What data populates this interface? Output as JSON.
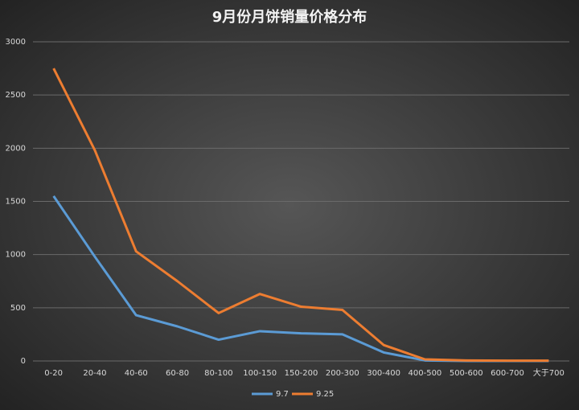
{
  "chart_data": {
    "type": "line",
    "title": "9月份月饼销量价格分布",
    "categories": [
      "0-20",
      "20-40",
      "40-60",
      "60-80",
      "80-100",
      "100-150",
      "150-200",
      "200-300",
      "300-400",
      "400-500",
      "500-600",
      "600-700",
      "大于700"
    ],
    "series": [
      {
        "name": "9.7",
        "color": "#5b9bd5",
        "values": [
          1550,
          980,
          430,
          325,
          200,
          280,
          260,
          250,
          80,
          5,
          0,
          0,
          0
        ]
      },
      {
        "name": "9.25",
        "color": "#ed7d31",
        "values": [
          2750,
          1980,
          1030,
          750,
          450,
          630,
          510,
          480,
          150,
          15,
          5,
          3,
          3
        ]
      }
    ],
    "ylim": [
      0,
      3000
    ],
    "yticks": [
      0,
      500,
      1000,
      1500,
      2000,
      2500,
      3000
    ],
    "grid": true,
    "legend": "bottom"
  }
}
